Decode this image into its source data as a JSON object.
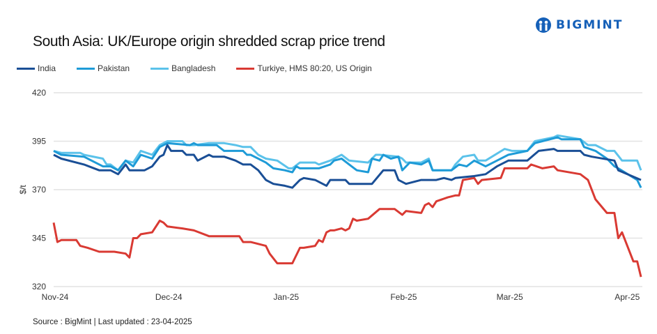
{
  "brand": {
    "name": "BIGMINT",
    "color": "#1560b8"
  },
  "chart_data": {
    "type": "line",
    "title": "South Asia: UK/Europe origin shredded scrap price trend",
    "xlabel": "",
    "ylabel": "$/t",
    "ylim": [
      320,
      420
    ],
    "yticks": [
      320,
      345,
      370,
      395,
      420
    ],
    "xlim": [
      "2024-11-01",
      "2025-04-05"
    ],
    "xticks": [
      {
        "date": "2024-11-01",
        "label": "Nov-24"
      },
      {
        "date": "2024-12-01",
        "label": "Dec-24"
      },
      {
        "date": "2025-01-01",
        "label": "Jan-25"
      },
      {
        "date": "2025-02-01",
        "label": "Feb-25"
      },
      {
        "date": "2025-03-01",
        "label": "Mar-25"
      },
      {
        "date": "2025-04-01",
        "label": "Apr-25"
      }
    ],
    "grid": "horizontal",
    "legend_position": "top-left",
    "series": [
      {
        "name": "India",
        "color": "#1a4f96",
        "points": [
          [
            "2024-11-01",
            388
          ],
          [
            "2024-11-03",
            386
          ],
          [
            "2024-11-09",
            383
          ],
          [
            "2024-11-13",
            380
          ],
          [
            "2024-11-16",
            380
          ],
          [
            "2024-11-18",
            378
          ],
          [
            "2024-11-20",
            383
          ],
          [
            "2024-11-21",
            380
          ],
          [
            "2024-11-25",
            380
          ],
          [
            "2024-11-27",
            382
          ],
          [
            "2024-11-29",
            387
          ],
          [
            "2024-11-30",
            388
          ],
          [
            "2024-12-01",
            393
          ],
          [
            "2024-12-02",
            390
          ],
          [
            "2024-12-05",
            390
          ],
          [
            "2024-12-06",
            388
          ],
          [
            "2024-12-08",
            388
          ],
          [
            "2024-12-09",
            385
          ],
          [
            "2024-12-12",
            388
          ],
          [
            "2024-12-13",
            387
          ],
          [
            "2024-12-16",
            387
          ],
          [
            "2024-12-19",
            385
          ],
          [
            "2024-12-21",
            383
          ],
          [
            "2024-12-23",
            383
          ],
          [
            "2024-12-25",
            380
          ],
          [
            "2024-12-27",
            375
          ],
          [
            "2024-12-29",
            373
          ],
          [
            "2025-01-01",
            372
          ],
          [
            "2025-01-03",
            371
          ],
          [
            "2025-01-05",
            375
          ],
          [
            "2025-01-06",
            376
          ],
          [
            "2025-01-09",
            375
          ],
          [
            "2025-01-12",
            372
          ],
          [
            "2025-01-13",
            375
          ],
          [
            "2025-01-17",
            375
          ],
          [
            "2025-01-18",
            373
          ],
          [
            "2025-01-24",
            373
          ],
          [
            "2025-01-27",
            380
          ],
          [
            "2025-01-30",
            380
          ],
          [
            "2025-01-31",
            375
          ],
          [
            "2025-02-02",
            373
          ],
          [
            "2025-02-06",
            375
          ],
          [
            "2025-02-10",
            375
          ],
          [
            "2025-02-12",
            376
          ],
          [
            "2025-02-14",
            375
          ],
          [
            "2025-02-15",
            376
          ],
          [
            "2025-02-20",
            377
          ],
          [
            "2025-02-23",
            378
          ],
          [
            "2025-02-26",
            382
          ],
          [
            "2025-03-01",
            385
          ],
          [
            "2025-03-06",
            385
          ],
          [
            "2025-03-09",
            390
          ],
          [
            "2025-03-13",
            391
          ],
          [
            "2025-03-14",
            390
          ],
          [
            "2025-03-20",
            390
          ],
          [
            "2025-03-21",
            388
          ],
          [
            "2025-03-23",
            387
          ],
          [
            "2025-03-29",
            385
          ],
          [
            "2025-03-30",
            380
          ],
          [
            "2025-04-05",
            375
          ]
        ]
      },
      {
        "name": "Pakistan",
        "color": "#1e9bd7",
        "points": [
          [
            "2024-11-01",
            390
          ],
          [
            "2024-11-03",
            388
          ],
          [
            "2024-11-09",
            387
          ],
          [
            "2024-11-14",
            382
          ],
          [
            "2024-11-16",
            382
          ],
          [
            "2024-11-18",
            380
          ],
          [
            "2024-11-20",
            385
          ],
          [
            "2024-11-22",
            382
          ],
          [
            "2024-11-24",
            388
          ],
          [
            "2024-11-27",
            386
          ],
          [
            "2024-11-29",
            392
          ],
          [
            "2024-12-01",
            394
          ],
          [
            "2024-12-07",
            393
          ],
          [
            "2024-12-08",
            394
          ],
          [
            "2024-12-09",
            393
          ],
          [
            "2024-12-14",
            393
          ],
          [
            "2024-12-16",
            390
          ],
          [
            "2024-12-21",
            390
          ],
          [
            "2024-12-22",
            388
          ],
          [
            "2024-12-23",
            388
          ],
          [
            "2024-12-27",
            384
          ],
          [
            "2024-12-29",
            381
          ],
          [
            "2025-01-01",
            380
          ],
          [
            "2025-01-03",
            379
          ],
          [
            "2025-01-04",
            382
          ],
          [
            "2025-01-05",
            381
          ],
          [
            "2025-01-10",
            381
          ],
          [
            "2025-01-13",
            383
          ],
          [
            "2025-01-14",
            385
          ],
          [
            "2025-01-16",
            386
          ],
          [
            "2025-01-18",
            383
          ],
          [
            "2025-01-20",
            380
          ],
          [
            "2025-01-23",
            379
          ],
          [
            "2025-01-24",
            386
          ],
          [
            "2025-01-26",
            385
          ],
          [
            "2025-01-27",
            388
          ],
          [
            "2025-01-29",
            386
          ],
          [
            "2025-01-31",
            387
          ],
          [
            "2025-02-01",
            380
          ],
          [
            "2025-02-03",
            384
          ],
          [
            "2025-02-06",
            383
          ],
          [
            "2025-02-08",
            385
          ],
          [
            "2025-02-09",
            380
          ],
          [
            "2025-02-14",
            380
          ],
          [
            "2025-02-16",
            383
          ],
          [
            "2025-02-18",
            382
          ],
          [
            "2025-02-20",
            385
          ],
          [
            "2025-02-23",
            382
          ],
          [
            "2025-02-26",
            385
          ],
          [
            "2025-03-01",
            388
          ],
          [
            "2025-03-06",
            390
          ],
          [
            "2025-03-08",
            394
          ],
          [
            "2025-03-14",
            397
          ],
          [
            "2025-03-15",
            396
          ],
          [
            "2025-03-20",
            396
          ],
          [
            "2025-03-21",
            392
          ],
          [
            "2025-03-24",
            390
          ],
          [
            "2025-03-27",
            386
          ],
          [
            "2025-03-29",
            382
          ],
          [
            "2025-03-30",
            381
          ],
          [
            "2025-04-04",
            375
          ],
          [
            "2025-04-05",
            371
          ]
        ]
      },
      {
        "name": "Bangladesh",
        "color": "#5bc2ea",
        "points": [
          [
            "2024-11-01",
            390
          ],
          [
            "2024-11-03",
            389
          ],
          [
            "2024-11-08",
            389
          ],
          [
            "2024-11-09",
            388
          ],
          [
            "2024-11-14",
            386
          ],
          [
            "2024-11-15",
            383
          ],
          [
            "2024-11-16",
            383
          ],
          [
            "2024-11-18",
            380
          ],
          [
            "2024-11-20",
            385
          ],
          [
            "2024-11-22",
            384
          ],
          [
            "2024-11-24",
            390
          ],
          [
            "2024-11-27",
            388
          ],
          [
            "2024-11-29",
            393
          ],
          [
            "2024-12-01",
            395
          ],
          [
            "2024-12-05",
            395
          ],
          [
            "2024-12-06",
            393
          ],
          [
            "2024-12-08",
            393
          ],
          [
            "2024-12-12",
            394
          ],
          [
            "2024-12-16",
            394
          ],
          [
            "2024-12-19",
            393
          ],
          [
            "2024-12-21",
            392
          ],
          [
            "2024-12-23",
            392
          ],
          [
            "2024-12-25",
            388
          ],
          [
            "2024-12-27",
            386
          ],
          [
            "2024-12-30",
            385
          ],
          [
            "2025-01-02",
            381
          ],
          [
            "2025-01-03",
            381
          ],
          [
            "2025-01-05",
            384
          ],
          [
            "2025-01-09",
            384
          ],
          [
            "2025-01-10",
            383
          ],
          [
            "2025-01-13",
            385
          ],
          [
            "2025-01-14",
            386
          ],
          [
            "2025-01-16",
            388
          ],
          [
            "2025-01-18",
            385
          ],
          [
            "2025-01-23",
            384
          ],
          [
            "2025-01-25",
            388
          ],
          [
            "2025-01-26",
            388
          ],
          [
            "2025-01-31",
            387
          ],
          [
            "2025-02-01",
            386
          ],
          [
            "2025-02-02",
            384
          ],
          [
            "2025-02-06",
            384
          ],
          [
            "2025-02-08",
            386
          ],
          [
            "2025-02-09",
            380
          ],
          [
            "2025-02-14",
            380
          ],
          [
            "2025-02-15",
            383
          ],
          [
            "2025-02-17",
            387
          ],
          [
            "2025-02-20",
            388
          ],
          [
            "2025-02-21",
            385
          ],
          [
            "2025-02-23",
            385
          ],
          [
            "2025-02-28",
            391
          ],
          [
            "2025-03-02",
            390
          ],
          [
            "2025-03-06",
            390
          ],
          [
            "2025-03-08",
            395
          ],
          [
            "2025-03-13",
            397
          ],
          [
            "2025-03-14",
            398
          ],
          [
            "2025-03-20",
            396
          ],
          [
            "2025-03-22",
            393
          ],
          [
            "2025-03-24",
            393
          ],
          [
            "2025-03-27",
            390
          ],
          [
            "2025-03-29",
            390
          ],
          [
            "2025-03-31",
            385
          ],
          [
            "2025-04-04",
            385
          ],
          [
            "2025-04-05",
            380
          ]
        ]
      },
      {
        "name": "Turkiye, HMS 80:20, US Origin",
        "color": "#d93a33",
        "points": [
          [
            "2024-11-01",
            353
          ],
          [
            "2024-11-02",
            343
          ],
          [
            "2024-11-03",
            344
          ],
          [
            "2024-11-07",
            344
          ],
          [
            "2024-11-08",
            341
          ],
          [
            "2024-11-10",
            340
          ],
          [
            "2024-11-13",
            338
          ],
          [
            "2024-11-17",
            338
          ],
          [
            "2024-11-20",
            337
          ],
          [
            "2024-11-21",
            335
          ],
          [
            "2024-11-22",
            345
          ],
          [
            "2024-11-23",
            345
          ],
          [
            "2024-11-24",
            347
          ],
          [
            "2024-11-27",
            348
          ],
          [
            "2024-11-29",
            354
          ],
          [
            "2024-11-30",
            353
          ],
          [
            "2024-12-01",
            351
          ],
          [
            "2024-12-05",
            350
          ],
          [
            "2024-12-08",
            349
          ],
          [
            "2024-12-12",
            346
          ],
          [
            "2024-12-20",
            346
          ],
          [
            "2024-12-21",
            343
          ],
          [
            "2024-12-23",
            343
          ],
          [
            "2024-12-27",
            341
          ],
          [
            "2024-12-28",
            337
          ],
          [
            "2024-12-30",
            332
          ],
          [
            "2025-01-03",
            332
          ],
          [
            "2025-01-05",
            340
          ],
          [
            "2025-01-06",
            340
          ],
          [
            "2025-01-09",
            341
          ],
          [
            "2025-01-10",
            344
          ],
          [
            "2025-01-11",
            343
          ],
          [
            "2025-01-12",
            348
          ],
          [
            "2025-01-13",
            349
          ],
          [
            "2025-01-14",
            349
          ],
          [
            "2025-01-16",
            350
          ],
          [
            "2025-01-17",
            349
          ],
          [
            "2025-01-18",
            350
          ],
          [
            "2025-01-19",
            355
          ],
          [
            "2025-01-20",
            354
          ],
          [
            "2025-01-23",
            355
          ],
          [
            "2025-01-26",
            360
          ],
          [
            "2025-01-30",
            360
          ],
          [
            "2025-02-01",
            357
          ],
          [
            "2025-02-02",
            359
          ],
          [
            "2025-02-06",
            358
          ],
          [
            "2025-02-07",
            362
          ],
          [
            "2025-02-08",
            363
          ],
          [
            "2025-02-09",
            361
          ],
          [
            "2025-02-10",
            364
          ],
          [
            "2025-02-13",
            366
          ],
          [
            "2025-02-15",
            367
          ],
          [
            "2025-02-16",
            367
          ],
          [
            "2025-02-17",
            375
          ],
          [
            "2025-02-20",
            376
          ],
          [
            "2025-02-21",
            373
          ],
          [
            "2025-02-22",
            375
          ],
          [
            "2025-02-27",
            376
          ],
          [
            "2025-02-28",
            381
          ],
          [
            "2025-03-06",
            381
          ],
          [
            "2025-03-07",
            383
          ],
          [
            "2025-03-10",
            381
          ],
          [
            "2025-03-13",
            382
          ],
          [
            "2025-03-14",
            380
          ],
          [
            "2025-03-20",
            378
          ],
          [
            "2025-03-22",
            375
          ],
          [
            "2025-03-24",
            365
          ],
          [
            "2025-03-27",
            358
          ],
          [
            "2025-03-29",
            358
          ],
          [
            "2025-03-30",
            345
          ],
          [
            "2025-03-31",
            348
          ],
          [
            "2025-04-03",
            333
          ],
          [
            "2025-04-04",
            333
          ],
          [
            "2025-04-05",
            325
          ]
        ]
      }
    ]
  },
  "source": "Source : BigMint | Last updated : 23-04-2025"
}
